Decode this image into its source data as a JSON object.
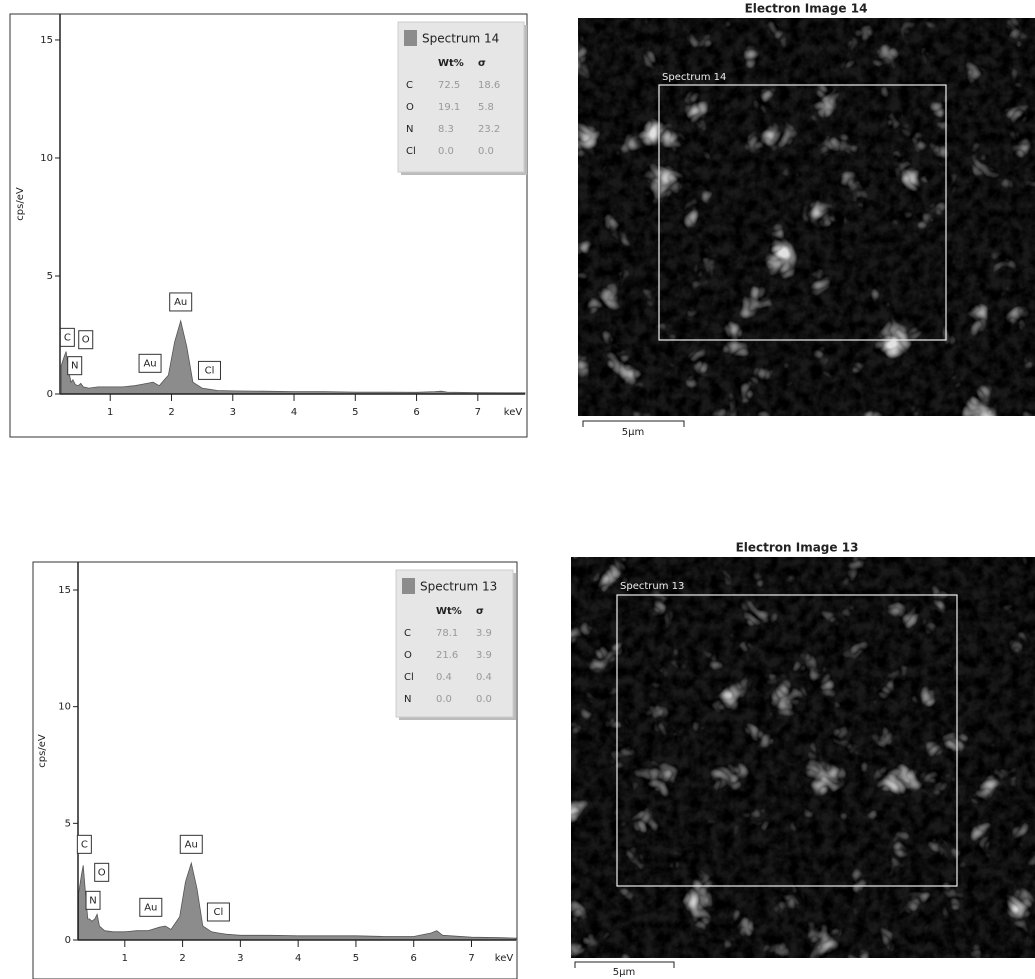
{
  "chart_data": [
    {
      "type": "area",
      "y_label": "cps/eV",
      "x_label": "keV",
      "x": [
        0.2,
        0.25,
        0.28,
        0.32,
        0.36,
        0.39,
        0.43,
        0.48,
        0.52,
        0.56,
        0.65,
        0.8,
        1.0,
        1.2,
        1.4,
        1.6,
        1.7,
        1.8,
        1.95,
        2.05,
        2.15,
        2.25,
        2.35,
        2.5,
        2.62,
        2.75,
        3.0,
        3.5,
        4,
        4.5,
        5,
        5.5,
        6,
        6.3,
        6.4,
        6.5,
        7,
        7.5,
        7.77
      ],
      "series": [
        {
          "name": "Spectrum 14",
          "color": "#8c8c8c",
          "values": [
            1.2,
            1.6,
            1.8,
            1.0,
            0.5,
            0.6,
            0.4,
            0.35,
            0.45,
            0.3,
            0.25,
            0.3,
            0.3,
            0.3,
            0.35,
            0.45,
            0.5,
            0.35,
            0.8,
            2.2,
            3.1,
            2.0,
            0.5,
            0.25,
            0.2,
            0.15,
            0.13,
            0.12,
            0.1,
            0.1,
            0.08,
            0.08,
            0.07,
            0.1,
            0.12,
            0.08,
            0.06,
            0.05,
            0.05
          ]
        }
      ],
      "xlim": [
        0.18,
        7.77
      ],
      "xticks": [
        1,
        2,
        3,
        4,
        5,
        6,
        7
      ],
      "ylim": [
        0,
        16.1
      ],
      "yticks": [
        0,
        5,
        10,
        15
      ],
      "annotations": [
        {
          "text": "C",
          "x": 0.3,
          "y": 2.4
        },
        {
          "text": "N",
          "x": 0.42,
          "y": 1.2
        },
        {
          "text": "O",
          "x": 0.6,
          "y": 2.3
        },
        {
          "text": "Au",
          "x": 1.65,
          "y": 1.3
        },
        {
          "text": "Au",
          "x": 2.15,
          "y": 3.9
        },
        {
          "text": "Cl",
          "x": 2.62,
          "y": 1.0
        }
      ],
      "table": {
        "columns": [
          "Wt%",
          "σ"
        ],
        "rows": [
          [
            "C",
            72.5,
            18.6
          ],
          [
            "O",
            19.1,
            5.8
          ],
          [
            "N",
            8.3,
            23.2
          ],
          [
            "Cl",
            "0.0",
            "0.0"
          ]
        ]
      }
    },
    {
      "type": "area",
      "y_label": "cps/eV",
      "x_label": "keV",
      "x": [
        0.2,
        0.25,
        0.28,
        0.32,
        0.36,
        0.39,
        0.43,
        0.48,
        0.52,
        0.56,
        0.65,
        0.8,
        1.0,
        1.2,
        1.4,
        1.6,
        1.7,
        1.8,
        1.95,
        2.05,
        2.15,
        2.25,
        2.35,
        2.5,
        2.62,
        2.75,
        3.0,
        3.5,
        4,
        4.5,
        5,
        5.5,
        6,
        6.3,
        6.4,
        6.5,
        7,
        7.5,
        7.77
      ],
      "series": [
        {
          "name": "Spectrum 13",
          "color": "#8c8c8c",
          "values": [
            2.0,
            2.8,
            3.2,
            2.0,
            0.9,
            0.9,
            0.8,
            0.9,
            1.1,
            0.6,
            0.4,
            0.35,
            0.35,
            0.4,
            0.4,
            0.55,
            0.6,
            0.45,
            1.0,
            2.5,
            3.3,
            2.2,
            0.6,
            0.35,
            0.3,
            0.25,
            0.2,
            0.2,
            0.18,
            0.18,
            0.18,
            0.15,
            0.15,
            0.3,
            0.4,
            0.2,
            0.12,
            0.1,
            0.08
          ]
        }
      ],
      "xlim": [
        0.19,
        7.77
      ],
      "xticks": [
        1,
        2,
        3,
        4,
        5,
        6,
        7
      ],
      "ylim": [
        0,
        16.2
      ],
      "yticks": [
        0,
        5,
        10,
        15
      ],
      "annotations": [
        {
          "text": "C",
          "x": 0.3,
          "y": 4.1
        },
        {
          "text": "N",
          "x": 0.45,
          "y": 1.7
        },
        {
          "text": "O",
          "x": 0.6,
          "y": 2.9
        },
        {
          "text": "Au",
          "x": 1.45,
          "y": 1.4
        },
        {
          "text": "Au",
          "x": 2.15,
          "y": 4.1
        },
        {
          "text": "Cl",
          "x": 2.62,
          "y": 1.2
        }
      ],
      "table": {
        "columns": [
          "Wt%",
          "σ"
        ],
        "rows": [
          [
            "C",
            78.1,
            3.9
          ],
          [
            "O",
            21.6,
            3.9
          ],
          [
            "Cl",
            0.4,
            0.4
          ],
          [
            "N",
            "0.0",
            "0.0"
          ]
        ]
      }
    }
  ],
  "images": [
    {
      "title": "Electron Image 14",
      "region_label": "Spectrum 14",
      "scale_label": "5µm"
    },
    {
      "title": "Electron Image 13",
      "region_label": "Spectrum 13",
      "scale_label": "5µm"
    }
  ]
}
